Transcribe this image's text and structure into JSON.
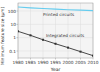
{
  "chart_data": {
    "type": "line",
    "log": "y",
    "grid": true,
    "xlabel": "Year",
    "ylabel": "Minimum feature size (μm)",
    "x": [
      1980,
      1985,
      1990,
      1995,
      2000,
      2005,
      2010
    ],
    "series": [
      {
        "name": "Printed circuits",
        "color": "#66ccee",
        "values": [
          200,
          175,
          155,
          138,
          125,
          115,
          108
        ]
      },
      {
        "name": "Integrated circuits",
        "color": "#333333",
        "marker": "square",
        "values": [
          3.0,
          1.5,
          0.7,
          0.35,
          0.18,
          0.09,
          0.045
        ]
      }
    ],
    "xlim": [
      1980,
      2010
    ],
    "xticks": [
      1980,
      1985,
      1990,
      1995,
      2000,
      2005,
      2010
    ],
    "ylim": [
      0.03,
      400
    ],
    "yticks": [
      0.1,
      1,
      10,
      100
    ]
  }
}
